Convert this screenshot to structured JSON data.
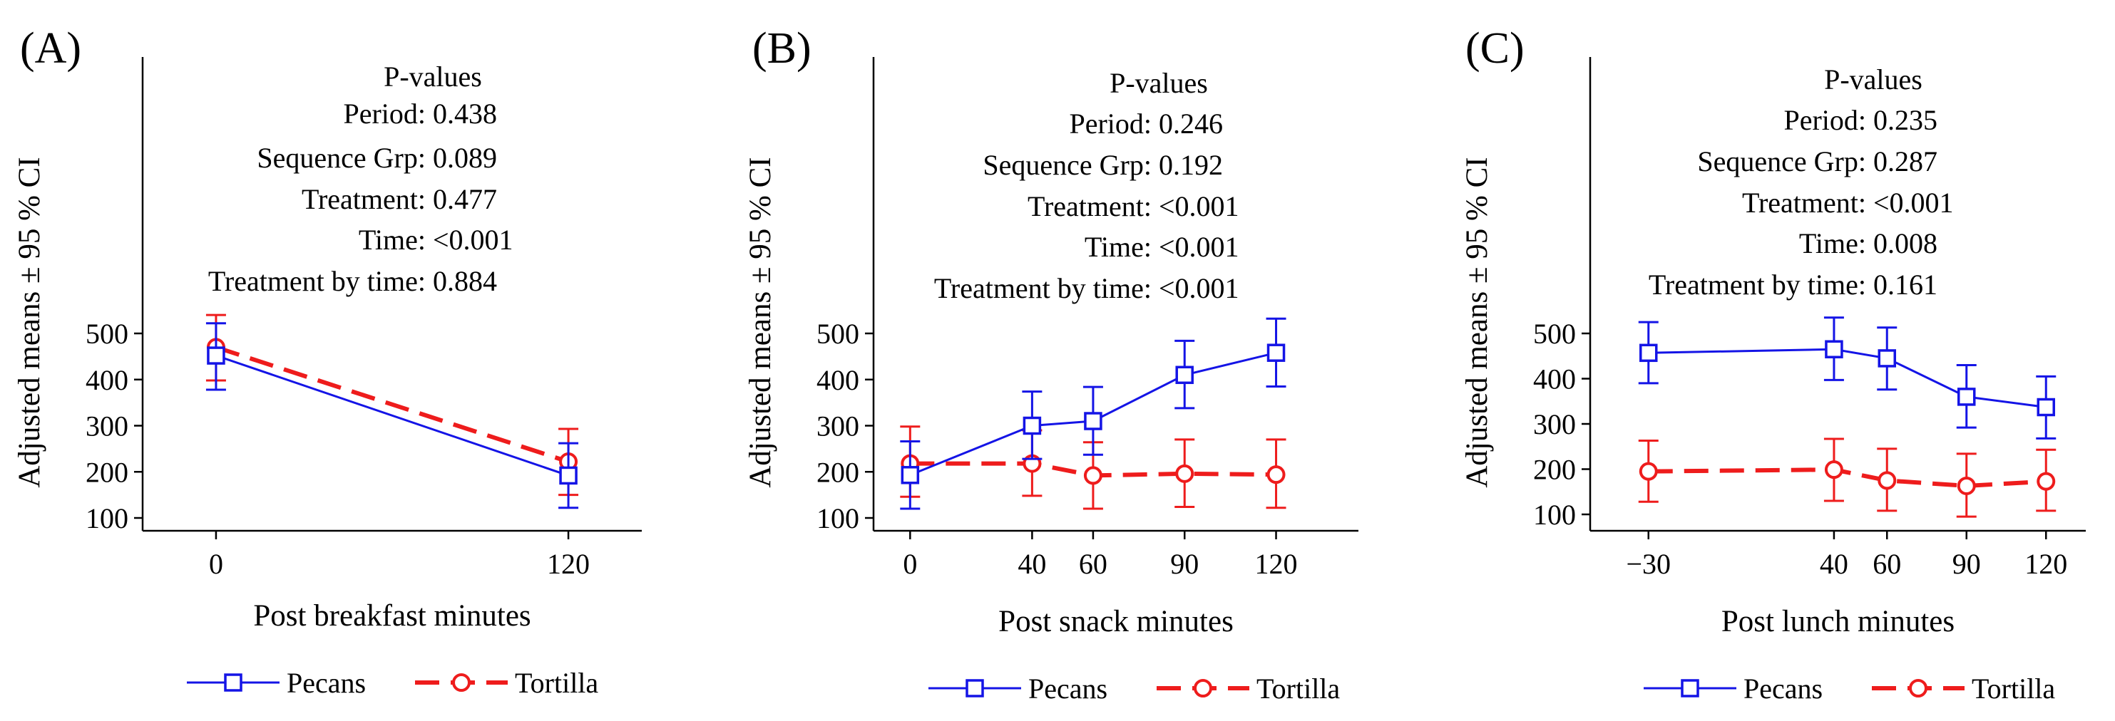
{
  "colors": {
    "pecans": "#1414e6",
    "tortilla": "#ee1c1c",
    "axis": "#000000"
  },
  "chart_data": [
    {
      "type": "line",
      "panel_label": "(A)",
      "xlabel": "Post breakfast minutes",
      "ylabel": "Adjusted means ± 95 % CI",
      "x": [
        0,
        120
      ],
      "x_tick_labels": [
        "0",
        "120"
      ],
      "y_ticks": [
        100,
        200,
        300,
        400,
        500
      ],
      "y_tick_labels": [
        "100",
        "200",
        "300",
        "400",
        "500"
      ],
      "pvalues_title": "P-values",
      "pvalues": [
        {
          "label": "Period:",
          "value": "0.438"
        },
        {
          "label": "Sequence Grp:",
          "value": "0.089"
        },
        {
          "label": "Treatment:",
          "value": "0.477"
        },
        {
          "label": "Time:",
          "value": "<0.001"
        },
        {
          "label": "Treatment by time:",
          "value": "0.884"
        }
      ],
      "series": [
        {
          "name": "Pecans",
          "style": "solid",
          "marker": "square",
          "values": [
            452,
            192
          ],
          "lower": [
            378,
            122
          ],
          "upper": [
            522,
            262
          ]
        },
        {
          "name": "Tortilla",
          "style": "dashed",
          "marker": "circle",
          "values": [
            470,
            222
          ],
          "lower": [
            398,
            150
          ],
          "upper": [
            540,
            293
          ]
        }
      ]
    },
    {
      "type": "line",
      "panel_label": "(B)",
      "xlabel": "Post snack minutes",
      "ylabel": "Adjusted means ± 95 % CI",
      "x": [
        0,
        40,
        60,
        90,
        120
      ],
      "x_tick_labels": [
        "0",
        "40",
        "60",
        "90",
        "120"
      ],
      "y_ticks": [
        100,
        200,
        300,
        400,
        500
      ],
      "y_tick_labels": [
        "100",
        "200",
        "300",
        "400",
        "500"
      ],
      "pvalues_title": "P-values",
      "pvalues": [
        {
          "label": "Period:",
          "value": "0.246"
        },
        {
          "label": "Sequence Grp:",
          "value": "0.192"
        },
        {
          "label": "Treatment:",
          "value": "<0.001"
        },
        {
          "label": "Time:",
          "value": "<0.001"
        },
        {
          "label": "Treatment by time:",
          "value": "<0.001"
        }
      ],
      "series": [
        {
          "name": "Pecans",
          "style": "solid",
          "marker": "square",
          "values": [
            193,
            300,
            310,
            410,
            458
          ],
          "lower": [
            120,
            228,
            237,
            338,
            385
          ],
          "upper": [
            266,
            374,
            384,
            484,
            532
          ]
        },
        {
          "name": "Tortilla",
          "style": "dashed",
          "marker": "circle",
          "values": [
            218,
            218,
            192,
            196,
            194
          ],
          "lower": [
            146,
            148,
            120,
            124,
            122
          ],
          "upper": [
            298,
            290,
            264,
            270,
            270
          ]
        }
      ]
    },
    {
      "type": "line",
      "panel_label": "(C)",
      "xlabel": "Post lunch minutes",
      "ylabel": "Adjusted means ± 95 % CI",
      "x": [
        -30,
        40,
        60,
        90,
        120
      ],
      "x_tick_labels": [
        "−30",
        "40",
        "60",
        "90",
        "120"
      ],
      "y_ticks": [
        100,
        200,
        300,
        400,
        500
      ],
      "y_tick_labels": [
        "100",
        "200",
        "300",
        "400",
        "500"
      ],
      "pvalues_title": "P-values",
      "pvalues": [
        {
          "label": "Period:",
          "value": "0.235"
        },
        {
          "label": "Sequence Grp:",
          "value": "0.287"
        },
        {
          "label": "Treatment:",
          "value": "<0.001"
        },
        {
          "label": "Time:",
          "value": "0.008"
        },
        {
          "label": "Treatment by time:",
          "value": "0.161"
        }
      ],
      "series": [
        {
          "name": "Pecans",
          "style": "solid",
          "marker": "square",
          "values": [
            457,
            465,
            445,
            360,
            337
          ],
          "lower": [
            390,
            397,
            376,
            292,
            268
          ],
          "upper": [
            525,
            535,
            513,
            430,
            405
          ]
        },
        {
          "name": "Tortilla",
          "style": "dashed",
          "marker": "circle",
          "values": [
            195,
            199,
            175,
            163,
            173
          ],
          "lower": [
            128,
            130,
            108,
            95,
            108
          ],
          "upper": [
            263,
            267,
            245,
            234,
            243
          ]
        }
      ]
    }
  ]
}
